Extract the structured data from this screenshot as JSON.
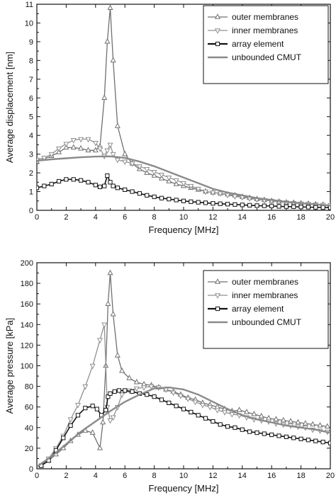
{
  "chart_data": [
    {
      "type": "line",
      "title": "",
      "xlabel": "Frequency [MHz]",
      "ylabel": "Average displacement [nm]",
      "xlim": [
        0,
        20
      ],
      "ylim": [
        0,
        11
      ],
      "xticks": [
        0,
        2,
        4,
        6,
        8,
        10,
        12,
        14,
        16,
        18,
        20
      ],
      "yticks": [
        0,
        1,
        2,
        3,
        4,
        5,
        6,
        7,
        8,
        9,
        10,
        11
      ],
      "legend_position": "top-right",
      "grid": false,
      "series": [
        {
          "name": "outer membranes",
          "color": "#707070",
          "marker": "triangle-up",
          "x": [
            0,
            0.5,
            1,
            1.5,
            2,
            2.5,
            3,
            3.5,
            4,
            4.3,
            4.6,
            4.8,
            5,
            5.2,
            5.5,
            6,
            6.5,
            7,
            7.5,
            8,
            8.5,
            9,
            9.5,
            10,
            10.5,
            11,
            11.5,
            12,
            12.5,
            13,
            13.5,
            14,
            14.5,
            15,
            15.5,
            16,
            16.5,
            17,
            17.5,
            18,
            18.5,
            19,
            19.5,
            20
          ],
          "y": [
            2.6,
            2.75,
            2.9,
            3.1,
            3.35,
            3.35,
            3.3,
            3.2,
            3.2,
            3.4,
            6.0,
            9.0,
            10.8,
            8.0,
            4.5,
            3.0,
            2.5,
            2.2,
            2.0,
            1.85,
            1.7,
            1.55,
            1.4,
            1.3,
            1.2,
            1.1,
            1.0,
            0.95,
            0.9,
            0.85,
            0.8,
            0.72,
            0.66,
            0.6,
            0.55,
            0.5,
            0.46,
            0.42,
            0.4,
            0.37,
            0.35,
            0.32,
            0.3,
            0.28
          ]
        },
        {
          "name": "inner membranes",
          "color": "#909090",
          "marker": "triangle-down",
          "x": [
            0,
            0.5,
            1,
            1.5,
            2,
            2.5,
            3,
            3.5,
            4,
            4.3,
            4.6,
            4.8,
            5,
            5.2,
            5.5,
            6,
            6.5,
            7,
            7.5,
            8,
            8.5,
            9,
            9.5,
            10,
            10.5,
            11,
            11.5,
            12,
            12.5,
            13,
            13.5,
            14,
            14.5,
            15,
            15.5,
            16,
            16.5,
            17,
            17.5,
            18,
            18.5,
            19,
            19.5,
            20
          ],
          "y": [
            2.7,
            2.8,
            3.0,
            3.3,
            3.55,
            3.75,
            3.8,
            3.8,
            3.6,
            3.3,
            2.9,
            3.2,
            3.5,
            3.0,
            2.7,
            2.6,
            2.5,
            2.35,
            2.2,
            2.05,
            1.9,
            1.75,
            1.6,
            1.45,
            1.3,
            1.15,
            1.0,
            0.95,
            0.9,
            0.82,
            0.75,
            0.7,
            0.64,
            0.58,
            0.54,
            0.5,
            0.46,
            0.42,
            0.39,
            0.36,
            0.34,
            0.31,
            0.29,
            0.27
          ]
        },
        {
          "name": "array element",
          "color": "#111111",
          "marker": "square",
          "x": [
            0,
            0.5,
            1,
            1.5,
            2,
            2.5,
            3,
            3.5,
            4,
            4.3,
            4.6,
            4.8,
            5,
            5.2,
            5.5,
            6,
            6.5,
            7,
            7.5,
            8,
            8.5,
            9,
            9.5,
            10,
            10.5,
            11,
            11.5,
            12,
            12.5,
            13,
            13.5,
            14,
            14.5,
            15,
            15.5,
            16,
            16.5,
            17,
            17.5,
            18,
            18.5,
            19,
            19.5,
            20
          ],
          "y": [
            1.2,
            1.3,
            1.4,
            1.55,
            1.65,
            1.65,
            1.6,
            1.5,
            1.35,
            1.25,
            1.3,
            1.85,
            1.5,
            1.3,
            1.2,
            1.1,
            1.0,
            0.9,
            0.8,
            0.72,
            0.65,
            0.6,
            0.55,
            0.5,
            0.46,
            0.43,
            0.4,
            0.37,
            0.35,
            0.33,
            0.31,
            0.29,
            0.27,
            0.25,
            0.24,
            0.23,
            0.21,
            0.2,
            0.19,
            0.18,
            0.17,
            0.16,
            0.15,
            0.14
          ]
        },
        {
          "name": "unbounded CMUT",
          "color": "#8a8a8a",
          "marker": "none",
          "x": [
            0,
            1,
            2,
            3,
            4,
            5,
            6,
            7,
            8,
            9,
            10,
            11,
            12,
            13,
            14,
            15,
            16,
            17,
            18,
            19,
            20
          ],
          "y": [
            2.65,
            2.72,
            2.78,
            2.83,
            2.87,
            2.88,
            2.8,
            2.6,
            2.35,
            2.05,
            1.75,
            1.45,
            1.15,
            0.95,
            0.8,
            0.65,
            0.55,
            0.45,
            0.38,
            0.32,
            0.25
          ]
        }
      ]
    },
    {
      "type": "line",
      "title": "",
      "xlabel": "Frequency [MHz]",
      "ylabel": "Average pressure [kPa]",
      "xlim": [
        0,
        20
      ],
      "ylim": [
        0,
        200
      ],
      "xticks": [
        0,
        2,
        4,
        6,
        8,
        10,
        12,
        14,
        16,
        18,
        20
      ],
      "yticks": [
        0,
        20,
        40,
        60,
        80,
        100,
        120,
        140,
        160,
        180,
        200
      ],
      "legend_position": "top-right",
      "grid": false,
      "series": [
        {
          "name": "outer membranes",
          "color": "#707070",
          "marker": "triangle-up",
          "x": [
            0.3,
            0.8,
            1.3,
            1.8,
            2.3,
            2.8,
            3.3,
            3.8,
            4.3,
            4.5,
            4.7,
            4.85,
            5,
            5.2,
            5.5,
            5.8,
            6.3,
            6.8,
            7.3,
            7.8,
            8.3,
            8.8,
            9.3,
            9.8,
            10.3,
            10.8,
            11.3,
            11.8,
            12.3,
            12.8,
            13.3,
            13.8,
            14.3,
            14.8,
            15.3,
            15.8,
            16.3,
            16.8,
            17.3,
            17.8,
            18.3,
            18.8,
            19.3,
            19.8
          ],
          "y": [
            3,
            8,
            14,
            20,
            27,
            33,
            37,
            35,
            20,
            45,
            100,
            160,
            190,
            150,
            110,
            95,
            88,
            84,
            82,
            81,
            79,
            77,
            75,
            72,
            69,
            67,
            64,
            62,
            60,
            58,
            56,
            57,
            55,
            53,
            51,
            49,
            48,
            47,
            46,
            45,
            44,
            43,
            42,
            41
          ]
        },
        {
          "name": "inner membranes",
          "color": "#909090",
          "marker": "triangle-down",
          "x": [
            0.3,
            0.8,
            1.3,
            1.8,
            2.3,
            2.8,
            3.3,
            3.8,
            4.3,
            4.6,
            4.8,
            5,
            5.2,
            5.5,
            5.8,
            6.3,
            6.8,
            7.3,
            7.8,
            8.3,
            8.8,
            9.3,
            9.8,
            10.3,
            10.8,
            11.3,
            11.8,
            12.3,
            12.8,
            13.3,
            13.8,
            14.3,
            14.8,
            15.3,
            15.8,
            16.3,
            16.8,
            17.3,
            17.8,
            18.3,
            18.8,
            19.3,
            19.8
          ],
          "y": [
            3,
            10,
            20,
            32,
            48,
            62,
            80,
            100,
            125,
            140,
            60,
            47,
            50,
            60,
            72,
            76,
            78,
            79,
            80,
            79,
            77,
            74,
            71,
            68,
            65,
            62,
            60,
            57,
            55,
            53,
            52,
            50,
            48,
            47,
            46,
            44,
            43,
            42,
            41,
            40,
            38,
            37,
            36
          ]
        },
        {
          "name": "array element",
          "color": "#111111",
          "marker": "square",
          "x": [
            0.3,
            0.8,
            1.3,
            1.8,
            2.3,
            2.8,
            3.3,
            3.8,
            4.1,
            4.4,
            4.7,
            4.85,
            5,
            5.3,
            5.6,
            6,
            6.5,
            7,
            7.5,
            8,
            8.5,
            9,
            9.5,
            10,
            10.5,
            11,
            11.5,
            12,
            12.5,
            13,
            13.5,
            14,
            14.5,
            15,
            15.5,
            16,
            16.5,
            17,
            17.5,
            18,
            18.5,
            19,
            19.5,
            20
          ],
          "y": [
            3,
            8,
            18,
            30,
            42,
            52,
            59,
            61,
            58,
            52,
            57,
            70,
            73,
            75,
            76,
            76,
            75,
            73,
            72,
            70,
            67,
            64,
            61,
            58,
            55,
            52,
            49,
            46,
            43,
            41,
            40,
            38,
            36,
            35,
            34,
            33,
            32,
            31,
            30,
            29,
            28,
            27,
            26,
            25
          ]
        },
        {
          "name": "unbounded CMUT",
          "color": "#8a8a8a",
          "marker": "none",
          "x": [
            0,
            1,
            2,
            3,
            4,
            5,
            6,
            7,
            8,
            9,
            10,
            11,
            12,
            13,
            14,
            15,
            16,
            17,
            18,
            19,
            20
          ],
          "y": [
            2,
            12,
            24,
            36,
            46,
            56,
            65,
            72,
            78,
            79,
            77,
            72,
            65,
            58,
            52,
            48,
            45,
            42,
            40,
            38,
            35
          ]
        }
      ]
    }
  ]
}
